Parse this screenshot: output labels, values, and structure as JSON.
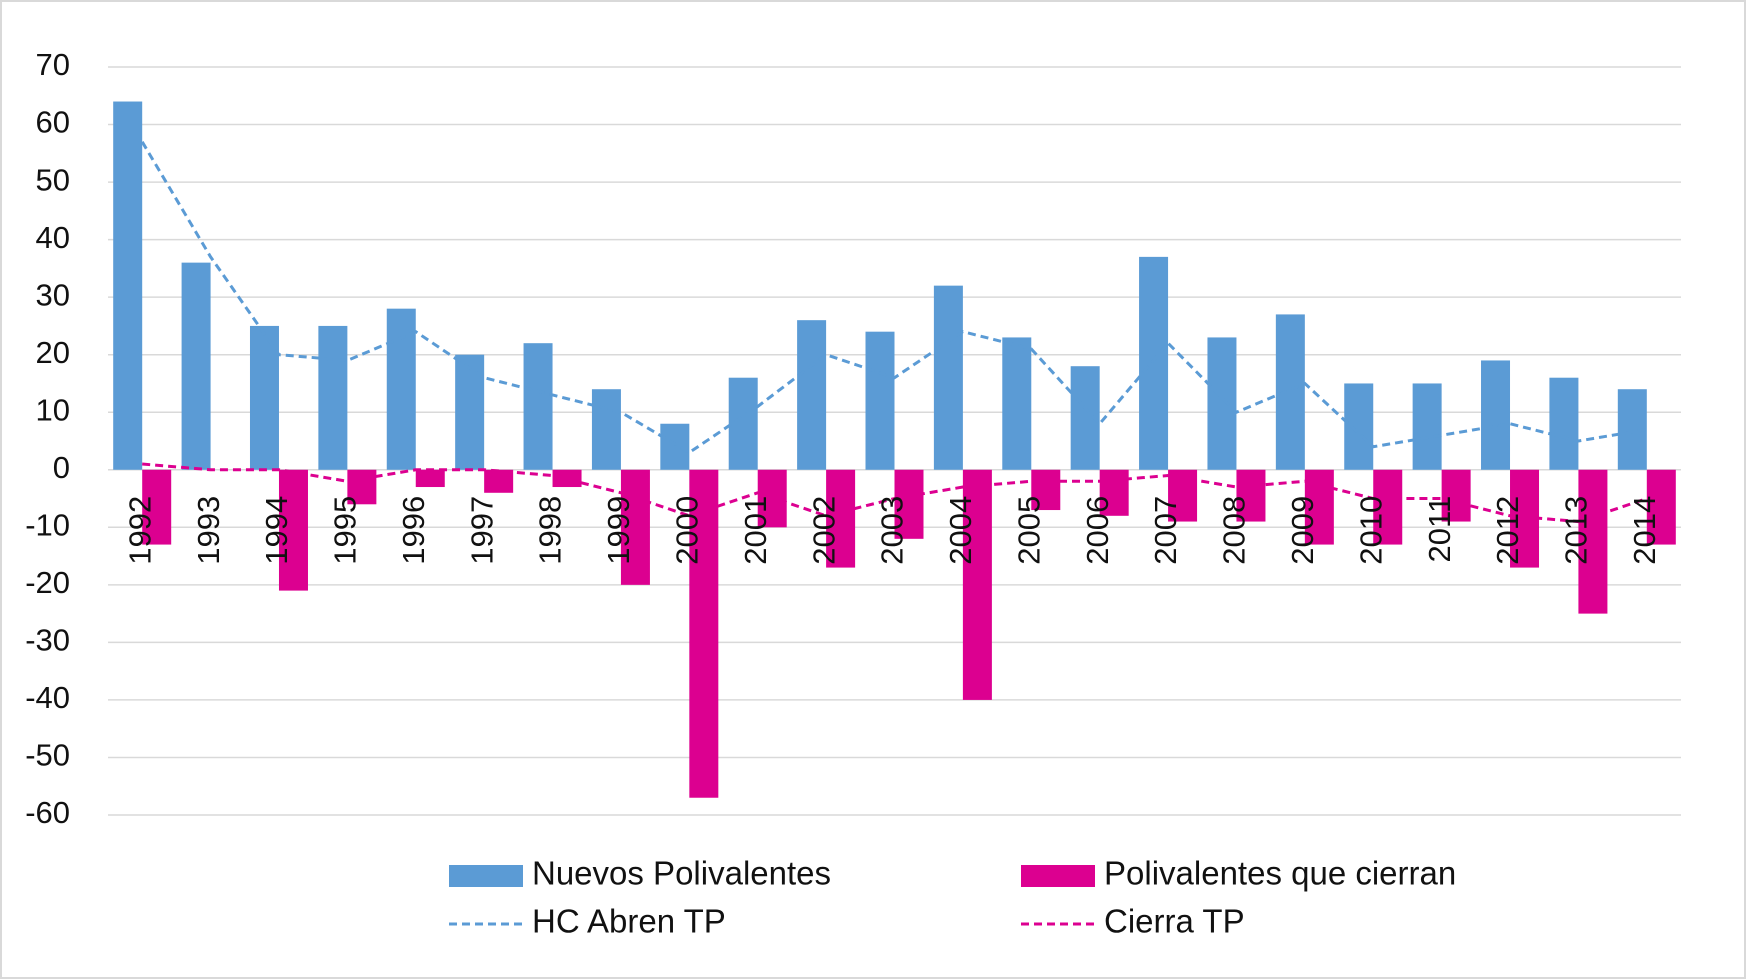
{
  "chart_data": {
    "type": "bar",
    "categories": [
      "1992",
      "1993",
      "1994",
      "1995",
      "1996",
      "1997",
      "1998",
      "1999",
      "2000",
      "2001",
      "2002",
      "2003",
      "2004",
      "2005",
      "2006",
      "2007",
      "2008",
      "2009",
      "2010",
      "2011",
      "2012",
      "2013",
      "2014"
    ],
    "series": [
      {
        "name": "Nuevos Polivalentes",
        "type": "bar",
        "color": "#5b9bd5",
        "values": [
          64,
          36,
          25,
          25,
          28,
          20,
          22,
          14,
          8,
          16,
          26,
          24,
          32,
          23,
          18,
          37,
          23,
          27,
          15,
          15,
          19,
          16,
          14
        ]
      },
      {
        "name": "Polivalentes que cierran",
        "type": "bar",
        "color": "#dc0090",
        "values": [
          -13,
          0,
          -21,
          -6,
          -3,
          -4,
          -3,
          -20,
          -57,
          -10,
          -17,
          -12,
          -40,
          -7,
          -8,
          -9,
          -9,
          -13,
          -13,
          -9,
          -17,
          -25,
          -13
        ]
      },
      {
        "name": "HC Abren TP",
        "type": "line",
        "line_style": "dashed",
        "color": "#5b9bd5",
        "values": [
          57,
          37,
          20,
          19,
          24,
          16,
          13,
          10,
          3,
          11,
          20,
          16,
          24,
          21,
          8,
          22,
          10,
          15,
          4,
          6,
          8,
          5,
          7
        ]
      },
      {
        "name": "Cierra TP",
        "type": "line",
        "line_style": "dashed",
        "color": "#dc0090",
        "values": [
          1,
          0,
          0,
          -2,
          0,
          0,
          -1,
          -4,
          -8,
          -4,
          -8,
          -5,
          -3,
          -2,
          -2,
          -1,
          -3,
          -2,
          -5,
          -5,
          -8,
          -9,
          -5
        ]
      }
    ],
    "ylim": [
      -60,
      70
    ],
    "yticks": [
      -60,
      -50,
      -40,
      -30,
      -20,
      -10,
      0,
      10,
      20,
      30,
      40,
      50,
      60,
      70
    ],
    "grid": true,
    "legend": "bottom"
  }
}
